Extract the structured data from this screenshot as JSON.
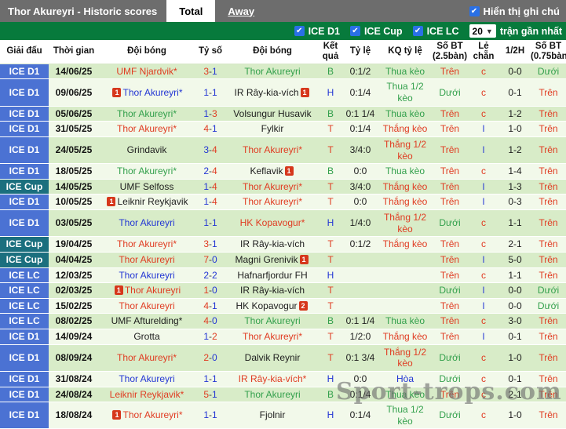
{
  "topbar": {
    "title": "Thor Akureyri - Historic scores",
    "tab_total": "Total",
    "tab_away": "Away",
    "show_notes_label": "Hiển thị ghi chú"
  },
  "filterbar": {
    "leagues": [
      "ICE D1",
      "ICE Cup",
      "ICE LC"
    ],
    "match_count": "20",
    "recent_label": "trận gần nhất"
  },
  "colors": {
    "red": "#e03c22",
    "blue": "#2336d4",
    "green": "#33a04c",
    "black": "#1d1d1d"
  },
  "watermark": "Sport-trops.com",
  "table": {
    "headers": [
      "Giải đấu",
      "Thời gian",
      "Đội bóng",
      "Tỷ số",
      "Đội bóng",
      "Kết quả",
      "Tỷ lệ",
      "KQ tỷ lệ",
      "Số BT (2.5bàn)",
      "Lẻ chẵn",
      "1/2H",
      "Số BT (0.75bàn)"
    ],
    "rows": [
      {
        "league": "ICE D1",
        "league_class": "d1",
        "date": "14/06/25",
        "home": {
          "name": "UMF Njardvik*",
          "color": "red"
        },
        "score": {
          "home": "3",
          "home_color": "red",
          "away": "1",
          "away_color": "blue"
        },
        "away": {
          "name": "Thor Akureyri",
          "color": "green"
        },
        "result": {
          "text": "B",
          "color": "green"
        },
        "odds": "0:1/2",
        "kq": {
          "text": "Thua kèo",
          "color": "green"
        },
        "bt25": {
          "text": "Trên",
          "color": "red"
        },
        "oe": {
          "text": "c",
          "color": "red"
        },
        "half": "0-0",
        "bt075": {
          "text": "Dưới",
          "color": "green"
        }
      },
      {
        "league": "ICE D1",
        "league_class": "d1",
        "date": "09/06/25",
        "home": {
          "name": "Thor Akureyri*",
          "color": "blue",
          "card": "1"
        },
        "score": {
          "home": "1",
          "home_color": "blue",
          "away": "1",
          "away_color": "blue"
        },
        "away": {
          "name": "IR Rây-kia-vích",
          "color": "black",
          "card": "1"
        },
        "result": {
          "text": "H",
          "color": "blue"
        },
        "odds": "0:1/4",
        "kq": {
          "text": "Thua 1/2 kèo",
          "color": "green"
        },
        "bt25": {
          "text": "Dưới",
          "color": "green"
        },
        "oe": {
          "text": "c",
          "color": "red"
        },
        "half": "0-1",
        "bt075": {
          "text": "Trên",
          "color": "red"
        }
      },
      {
        "league": "ICE D1",
        "league_class": "d1",
        "date": "05/06/25",
        "home": {
          "name": "Thor Akureyri*",
          "color": "green"
        },
        "score": {
          "home": "1",
          "home_color": "blue",
          "away": "3",
          "away_color": "red"
        },
        "away": {
          "name": "Volsungur Husavik",
          "color": "black"
        },
        "result": {
          "text": "B",
          "color": "green"
        },
        "odds": "0:1 1/4",
        "kq": {
          "text": "Thua kèo",
          "color": "green"
        },
        "bt25": {
          "text": "Trên",
          "color": "red"
        },
        "oe": {
          "text": "c",
          "color": "red"
        },
        "half": "1-2",
        "bt075": {
          "text": "Trên",
          "color": "red"
        }
      },
      {
        "league": "ICE D1",
        "league_class": "d1",
        "date": "31/05/25",
        "home": {
          "name": "Thor Akureyri*",
          "color": "red"
        },
        "score": {
          "home": "4",
          "home_color": "red",
          "away": "1",
          "away_color": "blue"
        },
        "away": {
          "name": "Fylkir",
          "color": "black"
        },
        "result": {
          "text": "T",
          "color": "red"
        },
        "odds": "0:1/4",
        "kq": {
          "text": "Thắng kèo",
          "color": "red"
        },
        "bt25": {
          "text": "Trên",
          "color": "red"
        },
        "oe": {
          "text": "l",
          "color": "blue"
        },
        "half": "1-0",
        "bt075": {
          "text": "Trên",
          "color": "red"
        }
      },
      {
        "league": "ICE D1",
        "league_class": "d1",
        "date": "24/05/25",
        "home": {
          "name": "Grindavik",
          "color": "black"
        },
        "score": {
          "home": "3",
          "home_color": "blue",
          "away": "4",
          "away_color": "red"
        },
        "away": {
          "name": "Thor Akureyri*",
          "color": "red"
        },
        "result": {
          "text": "T",
          "color": "red"
        },
        "odds": "3/4:0",
        "kq": {
          "text": "Thắng 1/2 kèo",
          "color": "red"
        },
        "bt25": {
          "text": "Trên",
          "color": "red"
        },
        "oe": {
          "text": "l",
          "color": "blue"
        },
        "half": "1-2",
        "bt075": {
          "text": "Trên",
          "color": "red"
        }
      },
      {
        "league": "ICE D1",
        "league_class": "d1",
        "date": "18/05/25",
        "home": {
          "name": "Thor Akureyri*",
          "color": "green"
        },
        "score": {
          "home": "2",
          "home_color": "blue",
          "away": "4",
          "away_color": "red"
        },
        "away": {
          "name": "Keflavik",
          "color": "black",
          "card": "1"
        },
        "result": {
          "text": "B",
          "color": "green"
        },
        "odds": "0:0",
        "kq": {
          "text": "Thua kèo",
          "color": "green"
        },
        "bt25": {
          "text": "Trên",
          "color": "red"
        },
        "oe": {
          "text": "c",
          "color": "red"
        },
        "half": "1-4",
        "bt075": {
          "text": "Trên",
          "color": "red"
        }
      },
      {
        "league": "ICE Cup",
        "league_class": "cup",
        "date": "14/05/25",
        "home": {
          "name": "UMF Selfoss",
          "color": "black"
        },
        "score": {
          "home": "1",
          "home_color": "blue",
          "away": "4",
          "away_color": "red"
        },
        "away": {
          "name": "Thor Akureyri*",
          "color": "red"
        },
        "result": {
          "text": "T",
          "color": "red"
        },
        "odds": "3/4:0",
        "kq": {
          "text": "Thắng kèo",
          "color": "red"
        },
        "bt25": {
          "text": "Trên",
          "color": "red"
        },
        "oe": {
          "text": "l",
          "color": "blue"
        },
        "half": "1-3",
        "bt075": {
          "text": "Trên",
          "color": "red"
        }
      },
      {
        "league": "ICE D1",
        "league_class": "d1",
        "date": "10/05/25",
        "home": {
          "name": "Leiknir Reykjavik",
          "color": "black",
          "card": "1"
        },
        "score": {
          "home": "1",
          "home_color": "blue",
          "away": "4",
          "away_color": "red"
        },
        "away": {
          "name": "Thor Akureyri*",
          "color": "red"
        },
        "result": {
          "text": "T",
          "color": "red"
        },
        "odds": "0:0",
        "kq": {
          "text": "Thắng kèo",
          "color": "red"
        },
        "bt25": {
          "text": "Trên",
          "color": "red"
        },
        "oe": {
          "text": "l",
          "color": "blue"
        },
        "half": "0-3",
        "bt075": {
          "text": "Trên",
          "color": "red"
        }
      },
      {
        "league": "ICE D1",
        "league_class": "d1",
        "date": "03/05/25",
        "home": {
          "name": "Thor Akureyri",
          "color": "blue"
        },
        "score": {
          "home": "1",
          "home_color": "blue",
          "away": "1",
          "away_color": "blue"
        },
        "away": {
          "name": "HK Kopavogur*",
          "color": "red"
        },
        "result": {
          "text": "H",
          "color": "blue"
        },
        "odds": "1/4:0",
        "kq": {
          "text": "Thắng 1/2 kèo",
          "color": "red"
        },
        "bt25": {
          "text": "Dưới",
          "color": "green"
        },
        "oe": {
          "text": "c",
          "color": "red"
        },
        "half": "1-1",
        "bt075": {
          "text": "Trên",
          "color": "red"
        }
      },
      {
        "league": "ICE Cup",
        "league_class": "cup",
        "date": "19/04/25",
        "home": {
          "name": "Thor Akureyri*",
          "color": "red"
        },
        "score": {
          "home": "3",
          "home_color": "red",
          "away": "1",
          "away_color": "blue"
        },
        "away": {
          "name": "IR Rây-kia-vích",
          "color": "black"
        },
        "result": {
          "text": "T",
          "color": "red"
        },
        "odds": "0:1/2",
        "kq": {
          "text": "Thắng kèo",
          "color": "red"
        },
        "bt25": {
          "text": "Trên",
          "color": "red"
        },
        "oe": {
          "text": "c",
          "color": "red"
        },
        "half": "2-1",
        "bt075": {
          "text": "Trên",
          "color": "red"
        }
      },
      {
        "league": "ICE Cup",
        "league_class": "cup",
        "date": "04/04/25",
        "home": {
          "name": "Thor Akureyri",
          "color": "red"
        },
        "score": {
          "home": "7",
          "home_color": "red",
          "away": "0",
          "away_color": "blue"
        },
        "away": {
          "name": "Magni Grenivik",
          "color": "black",
          "card": "1"
        },
        "result": {
          "text": "T",
          "color": "red"
        },
        "odds": "",
        "kq": {
          "text": "",
          "color": "black"
        },
        "bt25": {
          "text": "Trên",
          "color": "red"
        },
        "oe": {
          "text": "l",
          "color": "blue"
        },
        "half": "5-0",
        "bt075": {
          "text": "Trên",
          "color": "red"
        }
      },
      {
        "league": "ICE LC",
        "league_class": "d1",
        "date": "12/03/25",
        "home": {
          "name": "Thor Akureyri",
          "color": "blue"
        },
        "score": {
          "home": "2",
          "home_color": "blue",
          "away": "2",
          "away_color": "blue"
        },
        "away": {
          "name": "Hafnarfjordur FH",
          "color": "black"
        },
        "result": {
          "text": "H",
          "color": "blue"
        },
        "odds": "",
        "kq": {
          "text": "",
          "color": "black"
        },
        "bt25": {
          "text": "Trên",
          "color": "red"
        },
        "oe": {
          "text": "c",
          "color": "red"
        },
        "half": "1-1",
        "bt075": {
          "text": "Trên",
          "color": "red"
        }
      },
      {
        "league": "ICE LC",
        "league_class": "d1",
        "date": "02/03/25",
        "home": {
          "name": "Thor Akureyri",
          "color": "red",
          "card": "1"
        },
        "score": {
          "home": "1",
          "home_color": "red",
          "away": "0",
          "away_color": "blue"
        },
        "away": {
          "name": "IR Rây-kia-vích",
          "color": "black"
        },
        "result": {
          "text": "T",
          "color": "red"
        },
        "odds": "",
        "kq": {
          "text": "",
          "color": "black"
        },
        "bt25": {
          "text": "Dưới",
          "color": "green"
        },
        "oe": {
          "text": "l",
          "color": "blue"
        },
        "half": "0-0",
        "bt075": {
          "text": "Dưới",
          "color": "green"
        }
      },
      {
        "league": "ICE LC",
        "league_class": "d1",
        "date": "15/02/25",
        "home": {
          "name": "Thor Akureyri",
          "color": "red"
        },
        "score": {
          "home": "4",
          "home_color": "red",
          "away": "1",
          "away_color": "blue"
        },
        "away": {
          "name": "HK Kopavogur",
          "color": "black",
          "card": "2"
        },
        "result": {
          "text": "T",
          "color": "red"
        },
        "odds": "",
        "kq": {
          "text": "",
          "color": "black"
        },
        "bt25": {
          "text": "Trên",
          "color": "red"
        },
        "oe": {
          "text": "l",
          "color": "blue"
        },
        "half": "0-0",
        "bt075": {
          "text": "Dưới",
          "color": "green"
        }
      },
      {
        "league": "ICE LC",
        "league_class": "d1",
        "date": "08/02/25",
        "home": {
          "name": "UMF Afturelding*",
          "color": "black"
        },
        "score": {
          "home": "4",
          "home_color": "red",
          "away": "0",
          "away_color": "blue"
        },
        "away": {
          "name": "Thor Akureyri",
          "color": "green"
        },
        "result": {
          "text": "B",
          "color": "green"
        },
        "odds": "0:1 1/4",
        "kq": {
          "text": "Thua kèo",
          "color": "green"
        },
        "bt25": {
          "text": "Trên",
          "color": "red"
        },
        "oe": {
          "text": "c",
          "color": "red"
        },
        "half": "3-0",
        "bt075": {
          "text": "Trên",
          "color": "red"
        }
      },
      {
        "league": "ICE D1",
        "league_class": "d1",
        "date": "14/09/24",
        "home": {
          "name": "Grotta",
          "color": "black"
        },
        "score": {
          "home": "1",
          "home_color": "blue",
          "away": "2",
          "away_color": "red"
        },
        "away": {
          "name": "Thor Akureyri*",
          "color": "red"
        },
        "result": {
          "text": "T",
          "color": "red"
        },
        "odds": "1/2:0",
        "kq": {
          "text": "Thắng kèo",
          "color": "red"
        },
        "bt25": {
          "text": "Trên",
          "color": "red"
        },
        "oe": {
          "text": "l",
          "color": "blue"
        },
        "half": "0-1",
        "bt075": {
          "text": "Trên",
          "color": "red"
        }
      },
      {
        "league": "ICE D1",
        "league_class": "d1",
        "date": "08/09/24",
        "home": {
          "name": "Thor Akureyri*",
          "color": "red"
        },
        "score": {
          "home": "2",
          "home_color": "red",
          "away": "0",
          "away_color": "blue"
        },
        "away": {
          "name": "Dalvik Reynir",
          "color": "black"
        },
        "result": {
          "text": "T",
          "color": "red"
        },
        "odds": "0:1 3/4",
        "kq": {
          "text": "Thắng 1/2 kèo",
          "color": "red"
        },
        "bt25": {
          "text": "Dưới",
          "color": "green"
        },
        "oe": {
          "text": "c",
          "color": "red"
        },
        "half": "1-0",
        "bt075": {
          "text": "Trên",
          "color": "red"
        }
      },
      {
        "league": "ICE D1",
        "league_class": "d1",
        "date": "31/08/24",
        "home": {
          "name": "Thor Akureyri",
          "color": "blue"
        },
        "score": {
          "home": "1",
          "home_color": "blue",
          "away": "1",
          "away_color": "blue"
        },
        "away": {
          "name": "IR Rây-kia-vích*",
          "color": "red"
        },
        "result": {
          "text": "H",
          "color": "blue"
        },
        "odds": "0:0",
        "kq": {
          "text": "Hòa",
          "color": "blue"
        },
        "bt25": {
          "text": "Dưới",
          "color": "green"
        },
        "oe": {
          "text": "c",
          "color": "red"
        },
        "half": "0-1",
        "bt075": {
          "text": "Trên",
          "color": "red"
        }
      },
      {
        "league": "ICE D1",
        "league_class": "d1",
        "date": "24/08/24",
        "home": {
          "name": "Leiknir Reykjavik*",
          "color": "red"
        },
        "score": {
          "home": "5",
          "home_color": "red",
          "away": "1",
          "away_color": "blue"
        },
        "away": {
          "name": "Thor Akureyri",
          "color": "green"
        },
        "result": {
          "text": "B",
          "color": "green"
        },
        "odds": "0:1/4",
        "kq": {
          "text": "Thua kèo",
          "color": "green"
        },
        "bt25": {
          "text": "Trên",
          "color": "red"
        },
        "oe": {
          "text": "c",
          "color": "red"
        },
        "half": "2-1",
        "bt075": {
          "text": "Trên",
          "color": "red"
        }
      },
      {
        "league": "ICE D1",
        "league_class": "d1",
        "date": "18/08/24",
        "home": {
          "name": "Thor Akureyri*",
          "color": "red",
          "card": "1"
        },
        "score": {
          "home": "1",
          "home_color": "blue",
          "away": "1",
          "away_color": "blue"
        },
        "away": {
          "name": "Fjolnir",
          "color": "black"
        },
        "result": {
          "text": "H",
          "color": "blue"
        },
        "odds": "0:1/4",
        "kq": {
          "text": "Thua 1/2 kèo",
          "color": "green"
        },
        "bt25": {
          "text": "Dưới",
          "color": "green"
        },
        "oe": {
          "text": "c",
          "color": "red"
        },
        "half": "1-0",
        "bt075": {
          "text": "Trên",
          "color": "red"
        }
      }
    ]
  }
}
